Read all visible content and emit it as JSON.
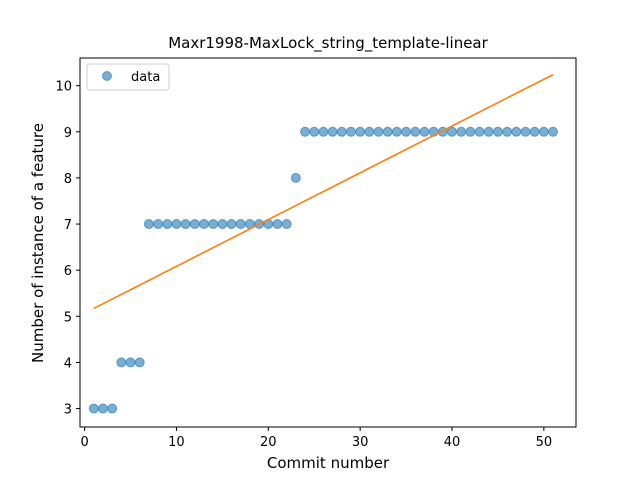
{
  "chart_data": {
    "type": "scatter",
    "title": "Maxr1998-MaxLock_string_template-linear",
    "xlabel": "Commit number",
    "ylabel": "Number of instance of a feature",
    "xlim": [
      -0.5,
      53.5
    ],
    "ylim": [
      2.6,
      10.6
    ],
    "xticks": [
      0,
      10,
      20,
      30,
      40,
      50
    ],
    "yticks": [
      3,
      4,
      5,
      6,
      7,
      8,
      9,
      10
    ],
    "grid": false,
    "legend_position": "top-left",
    "series": [
      {
        "name": "data",
        "kind": "scatter",
        "color": "#1f77b4",
        "x": [
          1,
          2,
          3,
          4,
          5,
          6,
          7,
          8,
          9,
          10,
          11,
          12,
          13,
          14,
          15,
          16,
          17,
          18,
          19,
          20,
          21,
          22,
          23,
          24,
          25,
          26,
          27,
          28,
          29,
          30,
          31,
          32,
          33,
          34,
          35,
          36,
          37,
          38,
          39,
          40,
          41,
          42,
          43,
          44,
          45,
          46,
          47,
          48,
          49,
          50,
          51
        ],
        "y": [
          3,
          3,
          3,
          4,
          4,
          4,
          7,
          7,
          7,
          7,
          7,
          7,
          7,
          7,
          7,
          7,
          7,
          7,
          7,
          7,
          7,
          7,
          8,
          9,
          9,
          9,
          9,
          9,
          9,
          9,
          9,
          9,
          9,
          9,
          9,
          9,
          9,
          9,
          9,
          9,
          9,
          9,
          9,
          9,
          9,
          9,
          9,
          9,
          9,
          9,
          9
        ]
      },
      {
        "kind": "line",
        "color": "#ff7f0e",
        "x": [
          1,
          51
        ],
        "y": [
          5.17,
          10.24
        ]
      }
    ]
  }
}
